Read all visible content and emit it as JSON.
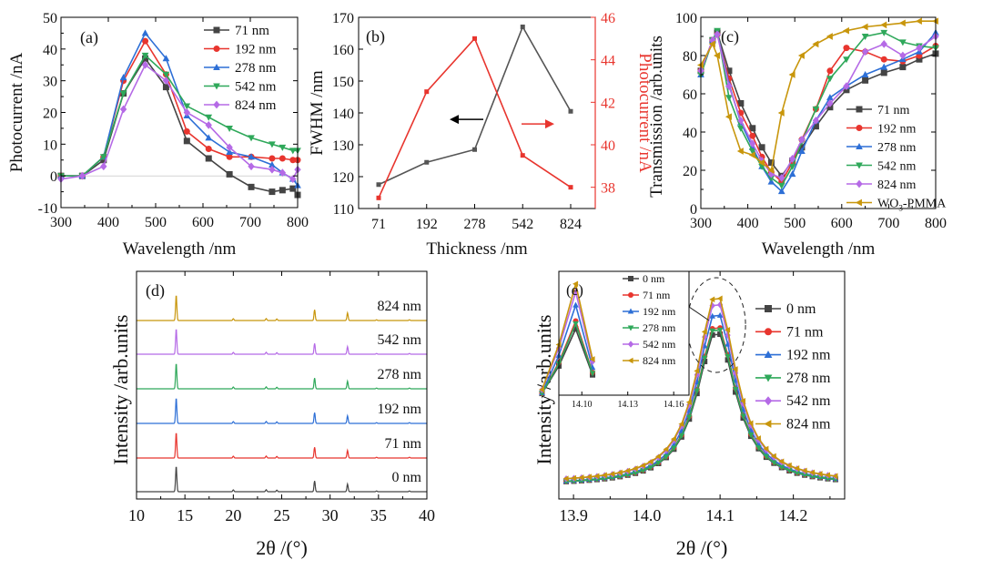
{
  "figure": {
    "panel_labels": [
      "(a)",
      "(b)",
      "(c)",
      "(d)",
      "(e)"
    ]
  },
  "chart_data": [
    {
      "type": "line",
      "panel": "(a)",
      "xlabel": "Wavelength /nm",
      "ylabel": "Photocurrent /nA",
      "xlim": [
        300,
        800
      ],
      "ylim": [
        -10,
        50
      ],
      "xticks": [
        300,
        400,
        500,
        600,
        700,
        800
      ],
      "yticks": [
        -10,
        0,
        10,
        20,
        30,
        40,
        50
      ],
      "legend_position": "top-right",
      "x": [
        300,
        345,
        390,
        432,
        478,
        522,
        566,
        612,
        656,
        702,
        746,
        768,
        790,
        800
      ],
      "series": [
        {
          "name": "71 nm",
          "color": "#444444",
          "marker": "square",
          "values": [
            0,
            0,
            5,
            26,
            37,
            28,
            11,
            5.5,
            0.5,
            -3.5,
            -5,
            -4.5,
            -4,
            -6
          ]
        },
        {
          "name": "192 nm",
          "color": "#e8352e",
          "marker": "circle",
          "values": [
            0,
            0,
            6,
            30,
            42.5,
            32,
            14,
            8.5,
            6,
            6,
            5.5,
            5.5,
            5,
            5
          ]
        },
        {
          "name": "278 nm",
          "color": "#2d6fd6",
          "marker": "triangle-up",
          "values": [
            0,
            0,
            6,
            31,
            45,
            37,
            19,
            12,
            7.5,
            6,
            3.5,
            1,
            -1,
            -3
          ]
        },
        {
          "name": "542 nm",
          "color": "#2fa85a",
          "marker": "triangle-down",
          "values": [
            0,
            0,
            6,
            26,
            38,
            32,
            22,
            18.5,
            15,
            12,
            10,
            9,
            8,
            8
          ]
        },
        {
          "name": "824 nm",
          "color": "#b56ae6",
          "marker": "diamond",
          "values": [
            -1,
            0,
            3,
            21,
            35,
            30,
            20,
            16,
            9,
            3,
            2,
            1,
            -1,
            2
          ]
        }
      ]
    },
    {
      "type": "line",
      "panel": "(b)",
      "xlabel": "Thickness /nm",
      "ylabel": "FWHM /nm",
      "ylabel_right": "Photocurrent /nA",
      "categories": [
        "71",
        "192",
        "278",
        "542",
        "824"
      ],
      "ylim": [
        110,
        170
      ],
      "yticks": [
        110,
        120,
        130,
        140,
        150,
        160,
        170
      ],
      "ylim_right": [
        37,
        46
      ],
      "yticks_right": [
        38,
        40,
        42,
        44,
        46
      ],
      "series": [
        {
          "name": "FWHM",
          "axis": "left",
          "color": "#555555",
          "marker": "square",
          "values": [
            117.5,
            124.5,
            128.5,
            167,
            140.5
          ]
        },
        {
          "name": "Photocurrent",
          "axis": "right",
          "color": "#e8352e",
          "marker": "square",
          "values": [
            37.5,
            42.5,
            45,
            39.5,
            38
          ]
        }
      ],
      "annotations": [
        {
          "type": "arrow",
          "direction": "left",
          "color": "#000000",
          "series": "FWHM"
        },
        {
          "type": "arrow",
          "direction": "right",
          "color": "#e8352e",
          "series": "Photocurrent"
        }
      ]
    },
    {
      "type": "line",
      "panel": "(c)",
      "xlabel": "Wavelength /nm",
      "ylabel": "Transmission /arb.units",
      "xlim": [
        300,
        800
      ],
      "ylim": [
        0,
        100
      ],
      "xticks": [
        300,
        400,
        500,
        600,
        700,
        800
      ],
      "yticks": [
        0,
        20,
        40,
        60,
        80,
        100
      ],
      "legend_position": "bottom-right",
      "x": [
        300,
        325,
        335,
        360,
        385,
        410,
        430,
        450,
        472,
        495,
        515,
        545,
        575,
        610,
        650,
        690,
        730,
        765,
        800
      ],
      "series": [
        {
          "name": "71 nm",
          "color": "#444444",
          "marker": "square",
          "values": [
            72,
            88,
            92,
            72,
            55,
            42,
            32,
            24,
            17,
            25,
            32,
            43,
            53,
            62,
            67,
            71,
            74,
            78,
            81
          ]
        },
        {
          "name": "192 nm",
          "color": "#e8352e",
          "marker": "circle",
          "values": [
            72,
            88,
            91,
            68,
            50,
            38,
            27,
            19,
            14,
            24,
            36,
            52,
            72,
            84,
            82,
            78,
            77,
            80,
            85
          ]
        },
        {
          "name": "278 nm",
          "color": "#2d6fd6",
          "marker": "triangle-up",
          "values": [
            70,
            88,
            92,
            65,
            45,
            32,
            22,
            14,
            9,
            18,
            30,
            46,
            58,
            64,
            70,
            74,
            78,
            82,
            92
          ]
        },
        {
          "name": "542 nm",
          "color": "#2fa85a",
          "marker": "triangle-down",
          "values": [
            70,
            88,
            93,
            58,
            42,
            30,
            22,
            16,
            12,
            22,
            35,
            52,
            68,
            78,
            90,
            92,
            87,
            85,
            84
          ]
        },
        {
          "name": "824 nm",
          "color": "#b56ae6",
          "marker": "diamond",
          "values": [
            72,
            88,
            91,
            64,
            46,
            34,
            25,
            18,
            16,
            26,
            36,
            46,
            55,
            64,
            82,
            86,
            80,
            84,
            90
          ]
        },
        {
          "name": "WO3-PMMA",
          "legend_label": "WO",
          "legend_sub": "3",
          "legend_suffix": "-PMMA",
          "color": "#c8960c",
          "marker": "triangle-left",
          "values": [
            75,
            86,
            80,
            48,
            30,
            28,
            24,
            20,
            50,
            70,
            80,
            86,
            90,
            93,
            95,
            96,
            97,
            98,
            98
          ]
        }
      ]
    },
    {
      "type": "line",
      "panel": "(d)",
      "xlabel": "2θ /(°)",
      "ylabel": "Intensity /arb.units",
      "xlim": [
        10,
        40
      ],
      "xticks": [
        10,
        15,
        20,
        25,
        30,
        35,
        40
      ],
      "offset_stacked": true,
      "peaks": [
        {
          "pos": 14.1,
          "height": 1.0
        },
        {
          "pos": 20.0,
          "height": 0.07
        },
        {
          "pos": 23.4,
          "height": 0.08
        },
        {
          "pos": 24.5,
          "height": 0.06
        },
        {
          "pos": 28.4,
          "height": 0.42
        },
        {
          "pos": 31.8,
          "height": 0.3
        },
        {
          "pos": 34.8,
          "height": 0.03
        },
        {
          "pos": 38.2,
          "height": 0.03
        }
      ],
      "series": [
        {
          "name": "0 nm",
          "color": "#444444"
        },
        {
          "name": "71 nm",
          "color": "#e8352e"
        },
        {
          "name": "192 nm",
          "color": "#2d6fd6"
        },
        {
          "name": "278 nm",
          "color": "#2fa85a"
        },
        {
          "name": "542 nm",
          "color": "#b56ae6"
        },
        {
          "name": "824 nm",
          "color": "#c8960c"
        }
      ]
    },
    {
      "type": "line",
      "panel": "(e)",
      "xlabel": "2θ /(°)",
      "ylabel": "Intensity /arb.units",
      "xlim": [
        13.88,
        14.27
      ],
      "xticks": [
        13.9,
        14.0,
        14.1,
        14.2
      ],
      "tick_labels": [
        "13.9",
        "14.0",
        "14.1",
        "14.2"
      ],
      "legend_position": "right",
      "peak_center": 14.095,
      "series": [
        {
          "name": "0 nm",
          "color": "#444444",
          "marker": "square",
          "peak": 0.75
        },
        {
          "name": "71 nm",
          "color": "#e8352e",
          "marker": "circle",
          "peak": 0.78
        },
        {
          "name": "192 nm",
          "color": "#2d6fd6",
          "marker": "triangle-up",
          "peak": 0.84
        },
        {
          "name": "278 nm",
          "color": "#2fa85a",
          "marker": "triangle-down",
          "peak": 0.77
        },
        {
          "name": "542 nm",
          "color": "#b56ae6",
          "marker": "diamond",
          "peak": 0.88
        },
        {
          "name": "824 nm",
          "color": "#c8960c",
          "marker": "triangle-left",
          "peak": 0.91
        }
      ],
      "inset": {
        "xlim": [
          14.085,
          14.17
        ],
        "xticks": [
          14.1,
          14.13,
          14.16
        ],
        "tick_labels": [
          "14.10",
          "14.13",
          "14.16"
        ]
      }
    }
  ]
}
